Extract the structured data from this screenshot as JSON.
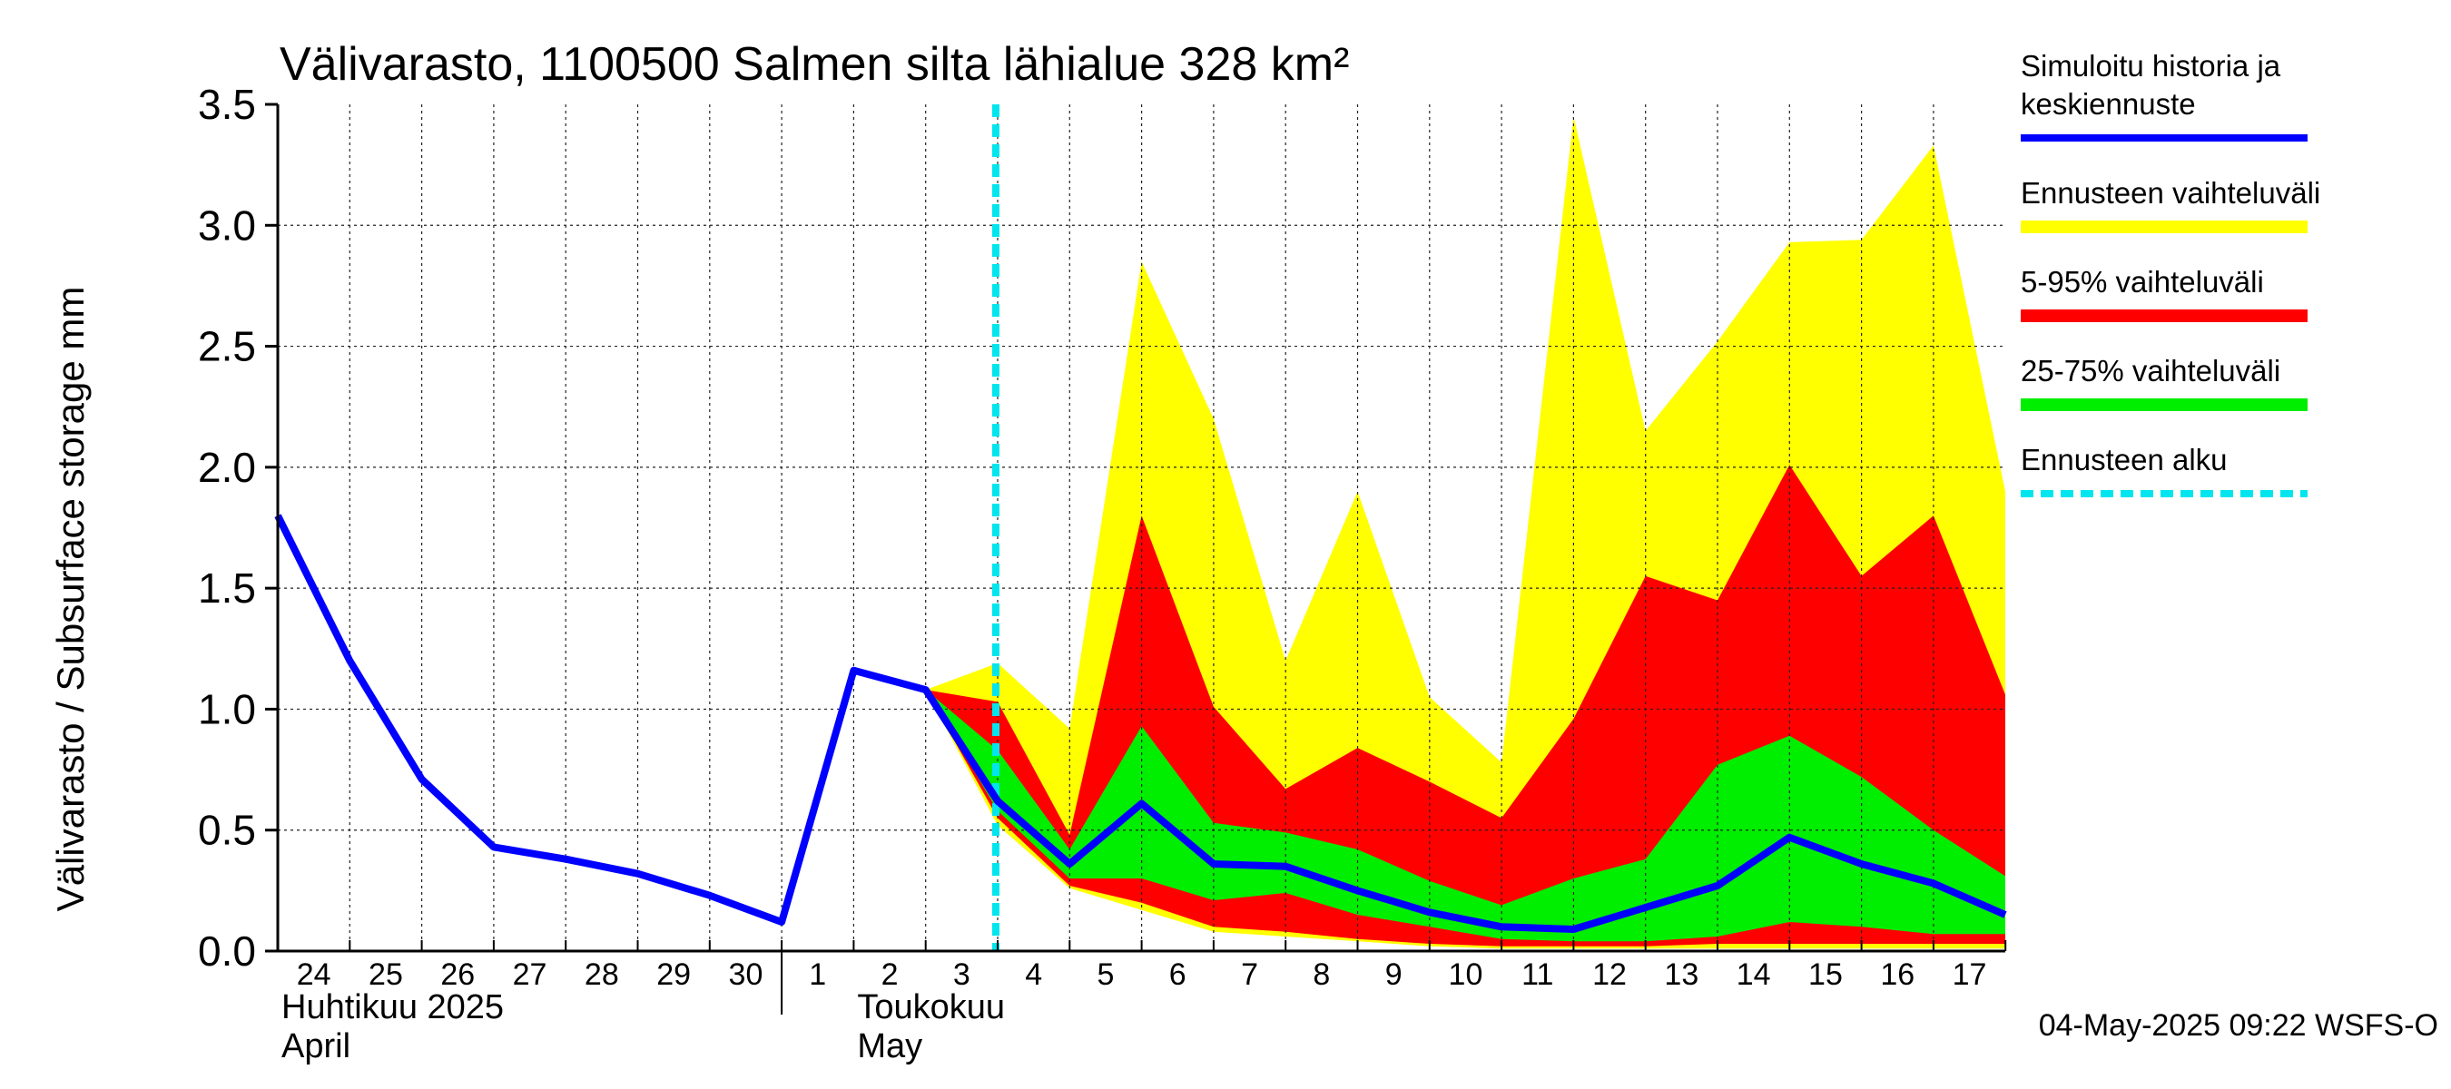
{
  "chart_data": {
    "type": "area",
    "title": "Välivarasto, 1100500 Salmen silta lähialue 328 km²",
    "ylabel": "Välivarasto / Subsurface storage  mm",
    "ylim": [
      0,
      3.5
    ],
    "yticks": [
      "0.0",
      "0.5",
      "1.0",
      "1.5",
      "2.0",
      "2.5",
      "3.0",
      "3.5"
    ],
    "xlim": [
      "2025-04-24",
      "2025-05-17"
    ],
    "x_day_labels": [
      "24",
      "25",
      "26",
      "27",
      "28",
      "29",
      "30",
      "1",
      "2",
      "3",
      "4",
      "5",
      "6",
      "7",
      "8",
      "9",
      "10",
      "11",
      "12",
      "13",
      "14",
      "15",
      "16",
      "17"
    ],
    "month_labels": [
      {
        "fi": "Huhtikuu  2025",
        "en": "April"
      },
      {
        "fi": "Toukokuu",
        "en": "May"
      }
    ],
    "grid": true,
    "legend_position": "right",
    "legend": [
      {
        "label": "Simuloitu historia ja keskiennuste",
        "color": "#0000ff",
        "style": "line"
      },
      {
        "label": "Ennusteen vaihteluväli",
        "color": "#ffff00",
        "style": "band"
      },
      {
        "label": "5-95% vaihteluväli",
        "color": "#ff0000",
        "style": "band"
      },
      {
        "label": "25-75% vaihteluväli",
        "color": "#00ee00",
        "style": "band"
      },
      {
        "label": "Ennusteen alku",
        "color": "#00e5ee",
        "style": "dashed"
      }
    ],
    "forecast_start": "2025-05-04",
    "series": [
      {
        "name": "Simuloitu historia ja keskiennuste",
        "x": [
          "2025-04-24",
          "2025-04-25",
          "2025-04-26",
          "2025-04-27",
          "2025-04-28",
          "2025-04-29",
          "2025-04-30",
          "2025-05-01",
          "2025-05-02",
          "2025-05-03",
          "2025-05-04",
          "2025-05-05",
          "2025-05-06",
          "2025-05-07",
          "2025-05-08",
          "2025-05-09",
          "2025-05-10",
          "2025-05-11",
          "2025-05-12",
          "2025-05-13",
          "2025-05-14",
          "2025-05-15",
          "2025-05-16",
          "2025-05-17",
          "2025-05-18"
        ],
        "y": [
          1.8,
          1.2,
          0.71,
          0.43,
          0.38,
          0.32,
          0.23,
          0.12,
          1.16,
          1.08,
          0.62,
          0.36,
          0.61,
          0.36,
          0.35,
          0.25,
          0.16,
          0.1,
          0.09,
          0.18,
          0.27,
          0.47,
          0.36,
          0.28,
          0.15
        ]
      }
    ],
    "bands": {
      "x": [
        "2025-05-03",
        "2025-05-04",
        "2025-05-05",
        "2025-05-06",
        "2025-05-07",
        "2025-05-08",
        "2025-05-09",
        "2025-05-10",
        "2025-05-11",
        "2025-05-12",
        "2025-05-13",
        "2025-05-14",
        "2025-05-15",
        "2025-05-16",
        "2025-05-17",
        "2025-05-18"
      ],
      "Ennusteen vaihteluväli": {
        "low": [
          1.08,
          0.52,
          0.26,
          0.17,
          0.08,
          0.06,
          0.04,
          0.02,
          0.01,
          0.01,
          0.01,
          0.01,
          0.01,
          0.01,
          0.01,
          0.01
        ],
        "high": [
          1.08,
          1.19,
          0.92,
          2.85,
          2.2,
          1.2,
          1.9,
          1.05,
          0.78,
          3.45,
          2.15,
          2.52,
          2.93,
          2.94,
          3.33,
          1.9
        ]
      },
      "5-95% vaihteluväli": {
        "low": [
          1.08,
          0.55,
          0.27,
          0.2,
          0.1,
          0.08,
          0.05,
          0.03,
          0.02,
          0.02,
          0.02,
          0.03,
          0.03,
          0.03,
          0.03,
          0.03
        ],
        "high": [
          1.08,
          1.03,
          0.48,
          1.8,
          1.01,
          0.67,
          0.84,
          0.7,
          0.55,
          0.96,
          1.55,
          1.45,
          2.01,
          1.55,
          1.8,
          1.06
        ]
      },
      "25-75% vaihteluväli": {
        "low": [
          1.08,
          0.58,
          0.3,
          0.3,
          0.21,
          0.24,
          0.15,
          0.1,
          0.05,
          0.04,
          0.04,
          0.06,
          0.12,
          0.1,
          0.07,
          0.07
        ],
        "high": [
          1.08,
          0.83,
          0.42,
          0.93,
          0.53,
          0.49,
          0.42,
          0.29,
          0.19,
          0.3,
          0.38,
          0.77,
          0.89,
          0.72,
          0.5,
          0.31
        ]
      }
    }
  },
  "footer": {
    "timestamp": "04-May-2025 09:22 WSFS-O"
  }
}
